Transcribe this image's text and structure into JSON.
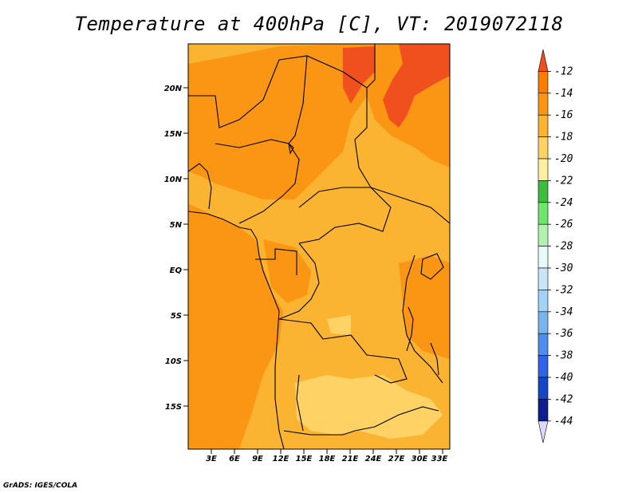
{
  "title": "Temperature at 400hPa [C], VT: 2019072118",
  "credit": "GrADS: IGES/COLA",
  "lat_labels": [
    "20N",
    "15N",
    "10N",
    "5N",
    "EQ",
    "5S",
    "10S",
    "15S"
  ],
  "lon_labels": [
    "3E",
    "6E",
    "9E",
    "12E",
    "15E",
    "18E",
    "21E",
    "24E",
    "27E",
    "30E",
    "33E"
  ],
  "colorbar": {
    "labels": [
      "-12",
      "-14",
      "-16",
      "-18",
      "-20",
      "-22",
      "-24",
      "-26",
      "-28",
      "-30",
      "-32",
      "-34",
      "-36",
      "-38",
      "-40",
      "-42",
      "-44"
    ],
    "colors": [
      "#f0501e",
      "#fa7d00",
      "#fa9614",
      "#fab432",
      "#fed264",
      "#fff0a0",
      "#3cbe3c",
      "#6ee66e",
      "#b4f0b4",
      "#e6fafa",
      "#c8e6f5",
      "#a0d2fa",
      "#78b4f0",
      "#508cf0",
      "#2d64e6",
      "#1446c8",
      "#0f1e8c",
      "#ddd8f5"
    ]
  },
  "chart_data": {
    "type": "heatmap",
    "title": "Temperature at 400hPa [C], VT: 2019072118",
    "variable": "Temperature at 400hPa",
    "units": "C",
    "valid_time": "2019072118",
    "lon_range": [
      0,
      34
    ],
    "lat_range": [
      -20,
      24
    ],
    "lon_ticks": [
      "3E",
      "6E",
      "9E",
      "12E",
      "15E",
      "18E",
      "21E",
      "24E",
      "27E",
      "30E",
      "33E"
    ],
    "lat_ticks": [
      "20N",
      "15N",
      "10N",
      "5N",
      "EQ",
      "5S",
      "10S",
      "15S"
    ],
    "contour_levels": [
      -44,
      -42,
      -40,
      -38,
      -36,
      -34,
      -32,
      -30,
      -28,
      -26,
      -24,
      -22,
      -20,
      -18,
      -16,
      -14,
      -12
    ],
    "observed_value_range": [
      -20,
      -12
    ]
  }
}
